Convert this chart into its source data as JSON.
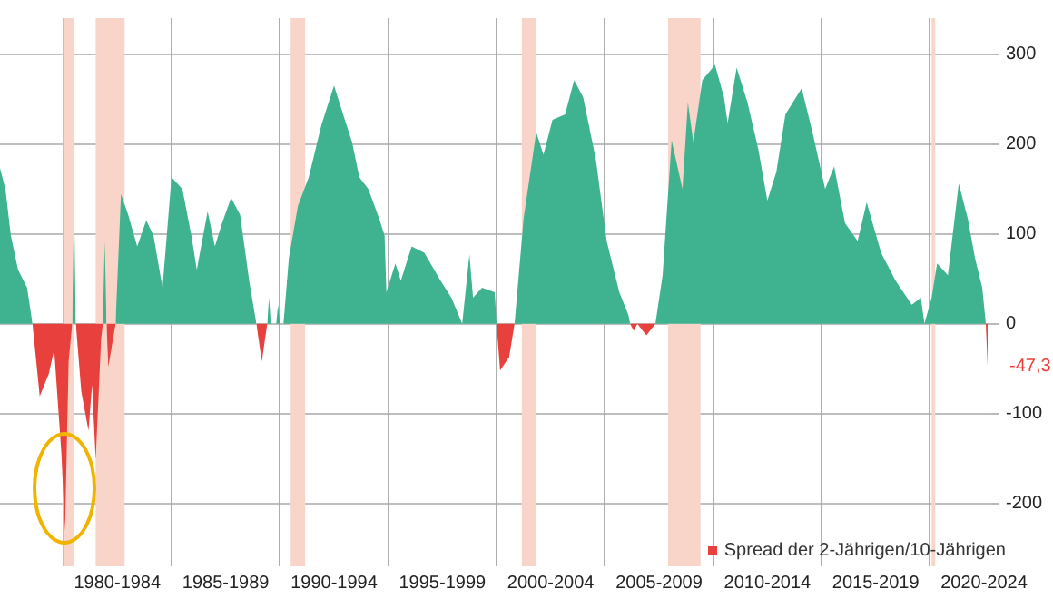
{
  "chart_data": {
    "type": "area",
    "x": [
      "1977-02",
      "1977-05",
      "1977-08",
      "1977-12",
      "1978-05",
      "1978-08",
      "1978-12",
      "1979-05",
      "1979-08",
      "1979-12",
      "1980-02",
      "1980-04",
      "1980-06",
      "1980-07",
      "1980-08",
      "1980-11",
      "1981-03",
      "1981-05",
      "1981-07",
      "1981-10",
      "1981-11",
      "1981-12",
      "1982-01",
      "1982-02",
      "1982-06",
      "1982-09",
      "1983-01",
      "1983-06",
      "1983-11",
      "1984-03",
      "1984-08",
      "1985-01",
      "1985-07",
      "1985-12",
      "1986-03",
      "1986-09",
      "1987-01",
      "1987-05",
      "1987-10",
      "1988-03",
      "1988-08",
      "1988-12",
      "1989-03",
      "1989-06",
      "1989-07",
      "1989-08",
      "1989-09",
      "1989-11",
      "1989-12",
      "1990-01",
      "1990-02",
      "1990-03",
      "1990-06",
      "1990-11",
      "1991-05",
      "1991-12",
      "1992-07",
      "1993-01",
      "1993-05",
      "1993-09",
      "1994-02",
      "1994-08",
      "1994-11",
      "1994-12",
      "1995-05",
      "1995-08",
      "1996-02",
      "1996-09",
      "1997-06",
      "1997-12",
      "1998-06",
      "1998-10",
      "1998-12",
      "1999-05",
      "1999-12",
      "2000-01",
      "2000-03",
      "2000-08",
      "2000-11",
      "2001-04",
      "2001-11",
      "2002-03",
      "2002-08",
      "2003-03",
      "2003-08",
      "2004-01",
      "2004-08",
      "2005-02",
      "2005-09",
      "2006-02",
      "2006-03",
      "2006-05",
      "2006-07",
      "2006-12",
      "2007-05",
      "2007-09",
      "2008-02",
      "2008-08",
      "2008-11",
      "2009-02",
      "2009-07",
      "2010-02",
      "2010-07",
      "2010-09",
      "2011-02",
      "2011-08",
      "2012-02",
      "2012-07",
      "2012-12",
      "2013-05",
      "2014-02",
      "2014-08",
      "2015-03",
      "2015-08",
      "2016-02",
      "2016-09",
      "2017-02",
      "2017-10",
      "2018-06",
      "2019-03",
      "2019-08",
      "2019-10",
      "2020-02",
      "2020-05",
      "2020-11",
      "2021-05",
      "2021-10",
      "2022-02",
      "2022-06",
      "2022-08",
      "2022-09"
    ],
    "series": [
      {
        "color": "#3fb28f",
        "values": [
          173,
          150,
          98,
          60,
          40,
          0,
          null,
          null,
          null,
          null,
          null,
          null,
          0,
          131,
          0,
          null,
          null,
          null,
          null,
          null,
          0,
          92,
          0,
          null,
          0,
          144,
          121,
          86,
          115,
          98,
          40,
          163,
          150,
          98,
          60,
          125,
          86,
          112,
          140,
          121,
          48,
          0,
          null,
          0,
          29,
          0,
          0,
          0,
          21,
          0,
          0,
          0,
          73,
          131,
          163,
          221,
          265,
          227,
          202,
          163,
          150,
          117,
          98,
          35,
          67,
          48,
          86,
          79,
          48,
          29,
          0,
          77,
          29,
          40,
          35,
          0,
          null,
          null,
          0,
          117,
          213,
          188,
          227,
          233,
          271,
          252,
          183,
          92,
          35,
          10,
          0,
          null,
          null,
          null,
          0,
          54,
          204,
          150,
          246,
          202,
          271,
          288,
          252,
          223,
          285,
          246,
          194,
          137,
          169,
          233,
          262,
          213,
          150,
          175,
          112,
          92,
          135,
          79,
          48,
          21,
          29,
          0,
          29,
          67,
          54,
          156,
          117,
          73,
          40,
          0,
          null
        ]
      },
      {
        "name": "Spread der 2-Jährigen/10-Jährigen",
        "color": "#e8403c",
        "values": [
          null,
          null,
          null,
          null,
          null,
          0,
          -81,
          -56,
          -29,
          -144,
          -231,
          -42,
          0,
          null,
          0,
          -75,
          -119,
          -68,
          -151,
          -17,
          0,
          null,
          0,
          -48,
          0,
          null,
          null,
          null,
          null,
          null,
          null,
          null,
          null,
          null,
          null,
          null,
          null,
          null,
          null,
          null,
          null,
          0,
          -42,
          0,
          null,
          null,
          null,
          null,
          null,
          null,
          null,
          null,
          null,
          null,
          null,
          null,
          null,
          null,
          null,
          null,
          null,
          null,
          null,
          null,
          null,
          null,
          null,
          null,
          null,
          null,
          null,
          null,
          null,
          null,
          null,
          0,
          -52,
          -37,
          0,
          null,
          null,
          null,
          null,
          null,
          null,
          null,
          null,
          null,
          null,
          null,
          0,
          -8,
          0,
          -13,
          0,
          null,
          null,
          null,
          null,
          null,
          null,
          null,
          null,
          null,
          null,
          null,
          null,
          null,
          null,
          null,
          null,
          null,
          null,
          null,
          null,
          null,
          null,
          null,
          null,
          null,
          null,
          null,
          null,
          null,
          null,
          null,
          null,
          null,
          null,
          0,
          -47.3
        ]
      }
    ],
    "xlim": [
      "1977-02",
      "2022-11"
    ],
    "xticks": [
      {
        "value": "1980-01",
        "label": null
      },
      {
        "value": "1982-07",
        "label": "1980-1984"
      },
      {
        "value": "1985-01",
        "label": null
      },
      {
        "value": "1987-07",
        "label": "1985-1989"
      },
      {
        "value": "1990-01",
        "label": null
      },
      {
        "value": "1992-07",
        "label": "1990-1994"
      },
      {
        "value": "1995-01",
        "label": null
      },
      {
        "value": "1997-07",
        "label": "1995-1999"
      },
      {
        "value": "2000-01",
        "label": null
      },
      {
        "value": "2002-07",
        "label": "2000-2004"
      },
      {
        "value": "2005-01",
        "label": null
      },
      {
        "value": "2007-07",
        "label": "2005-2009"
      },
      {
        "value": "2010-01",
        "label": null
      },
      {
        "value": "2012-07",
        "label": "2010-2014"
      },
      {
        "value": "2015-01",
        "label": null
      },
      {
        "value": "2017-07",
        "label": "2015-2019"
      },
      {
        "value": "2020-01",
        "label": null
      },
      {
        "value": "2022-07",
        "label": "2020-2024"
      }
    ],
    "ylim": [
      -270,
      340
    ],
    "yticks": [
      -200,
      -100,
      0,
      100,
      200,
      300
    ],
    "grid": true,
    "legend": "bottom right",
    "bands": [
      {
        "axis": "x",
        "from": "1980-01",
        "to": "1980-07",
        "color": "#f9d5c9"
      },
      {
        "axis": "x",
        "from": "1981-07",
        "to": "1982-11",
        "color": "#f9d5c9"
      },
      {
        "axis": "x",
        "from": "1990-07",
        "to": "1991-03",
        "color": "#f9d5c9"
      },
      {
        "axis": "x",
        "from": "2001-03",
        "to": "2001-11",
        "color": "#f9d5c9"
      },
      {
        "axis": "x",
        "from": "2007-12",
        "to": "2009-06",
        "color": "#f9d5c9"
      },
      {
        "axis": "x",
        "from": "2020-02",
        "to": "2020-04",
        "color": "#f9d5c9"
      }
    ],
    "annotations": [
      {
        "text": "-47,3",
        "x": "2022-09",
        "y": -47.3
      }
    ]
  }
}
